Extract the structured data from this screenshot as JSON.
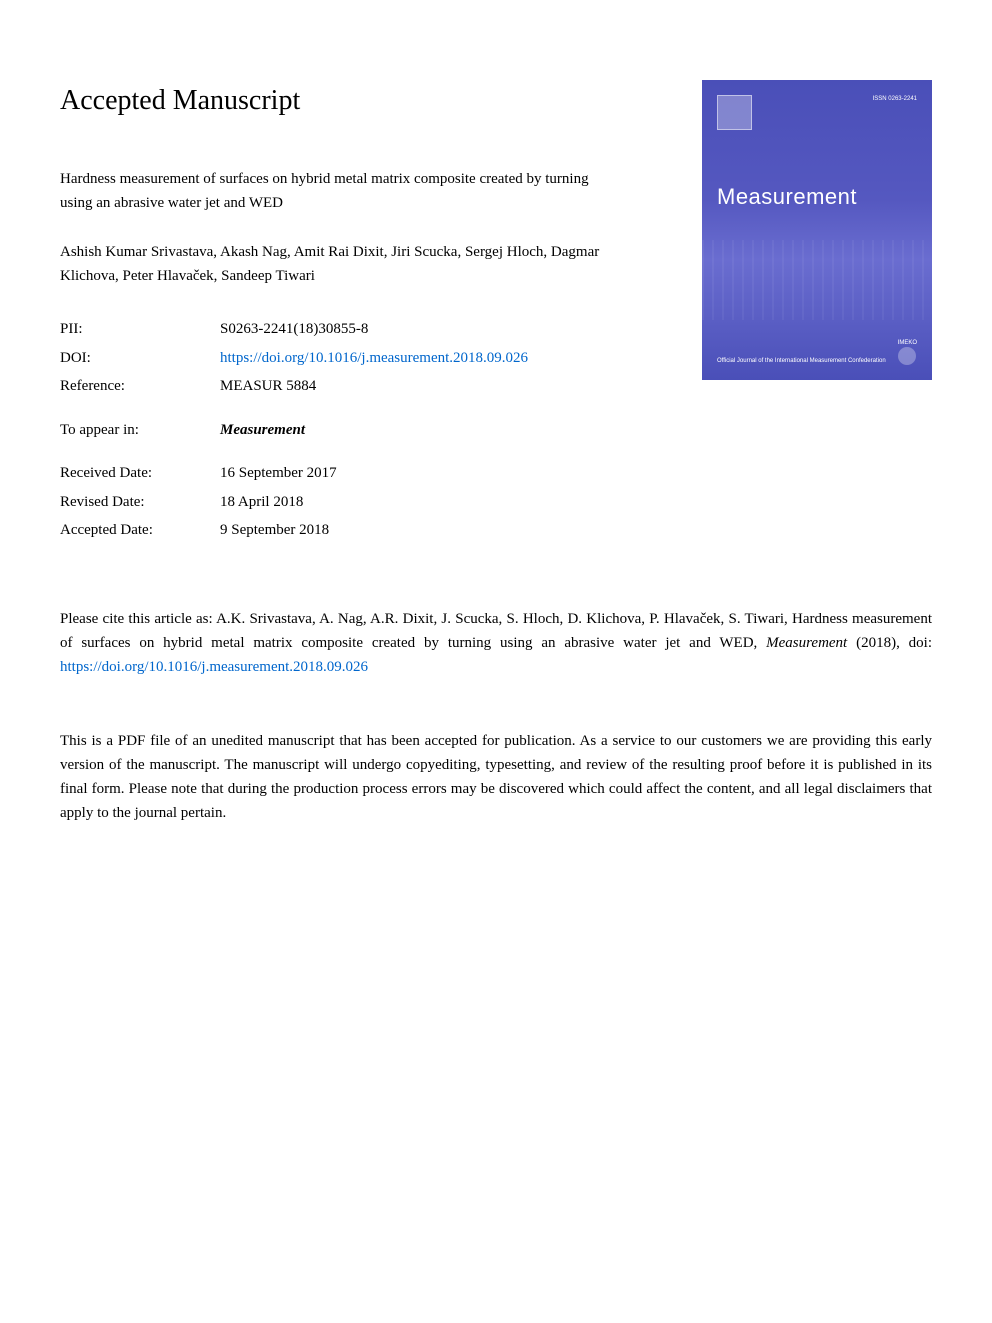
{
  "page_title": "Accepted Manuscript",
  "article_title": "Hardness measurement of surfaces on hybrid metal matrix composite created by turning using an abrasive water jet and WED",
  "authors": "Ashish Kumar Srivastava, Akash Nag, Amit Rai Dixit, Jiri Scucka, Sergej Hloch, Dagmar Klichova, Peter Hlavaček, Sandeep Tiwari",
  "metadata": {
    "pii": {
      "label": "PII:",
      "value": "S0263-2241(18)30855-8"
    },
    "doi": {
      "label": "DOI:",
      "value": "https://doi.org/10.1016/j.measurement.2018.09.026"
    },
    "reference": {
      "label": "Reference:",
      "value": "MEASUR 5884"
    },
    "appear": {
      "label": "To appear in:",
      "value": "Measurement"
    },
    "received": {
      "label": "Received Date:",
      "value": "16 September 2017"
    },
    "revised": {
      "label": "Revised Date:",
      "value": "18 April 2018"
    },
    "accepted": {
      "label": "Accepted Date:",
      "value": "9 September 2018"
    }
  },
  "cover": {
    "issn": "ISSN 0263-2241",
    "title": "Measurement",
    "bottom_text": "Official Journal of the\nInternational\nMeasurement\nConfederation",
    "imeko": "IMEKO"
  },
  "citation": {
    "prefix": "Please cite this article as: A.K. Srivastava, A. Nag, A.R. Dixit, J. Scucka, S. Hloch, D. Klichova, P. Hlavaček, S. Tiwari, Hardness measurement of surfaces on hybrid metal matrix composite created by turning using an abrasive water jet and WED, ",
    "journal": "Measurement",
    "year": " (2018), doi: ",
    "doi": "https://doi.org/10.1016/j.measurement.2018.09.026"
  },
  "disclaimer": "This is a PDF file of an unedited manuscript that has been accepted for publication. As a service to our customers we are providing this early version of the manuscript. The manuscript will undergo copyediting, typesetting, and review of the resulting proof before it is published in its final form. Please note that during the production process errors may be discovered which could affect the content, and all legal disclaimers that apply to the journal pertain.",
  "colors": {
    "link": "#0066cc",
    "cover_bg": "#4a4fb8",
    "text": "#000000",
    "background": "#ffffff"
  }
}
